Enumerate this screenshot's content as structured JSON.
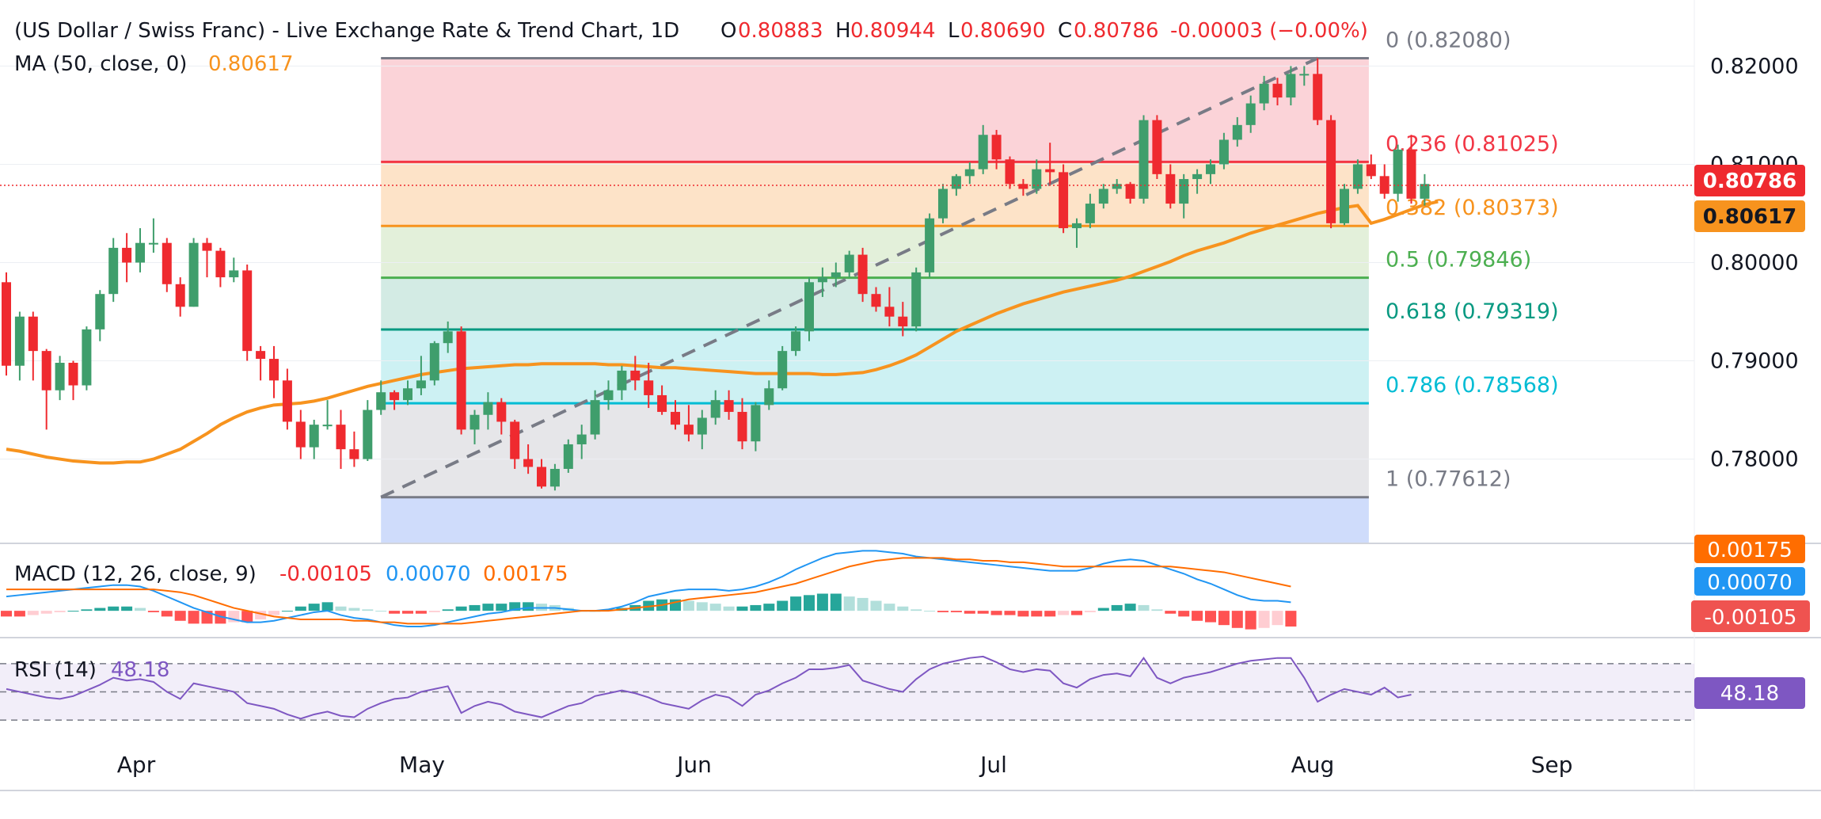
{
  "header": {
    "title": "(US Dollar / Swiss Franc) - Live Exchange Rate & Trend Chart, 1D",
    "ohlc": {
      "o_label": "O",
      "o": "0.80883",
      "h_label": "H",
      "h": "0.80944",
      "l_label": "L",
      "l": "0.80690",
      "c_label": "C",
      "c": "0.80786",
      "change": "-0.00003 (−0.00%)"
    },
    "ma_label": "MA (50, close, 0)",
    "ma_value": "0.80617"
  },
  "colors": {
    "up": "#26a69a",
    "upCandle": "#3f9e6c",
    "down": "#ef2a2f",
    "ma": "#f7931e",
    "macd": "#2196f3",
    "signal": "#ff6d00",
    "rsi": "#7e57c2",
    "fibGrey": "#787b86"
  },
  "chart_data": {
    "type": "candlestick",
    "price_axis": {
      "min": 0.7715,
      "max": 0.8235,
      "ticks": [
        "0.82000",
        "0.81000",
        "0.80000",
        "0.79000",
        "0.78000"
      ]
    },
    "time_axis": {
      "labels": [
        "Apr",
        "May",
        "Jun",
        "Jul",
        "Aug",
        "Sep"
      ]
    },
    "last_price": "0.80786",
    "ma_last": "0.80617",
    "fibonacci": [
      {
        "level": "0",
        "value": 0.8208,
        "label": "0 (0.82080)",
        "color": "#787b86",
        "fill": "#fbd3d8"
      },
      {
        "level": "0.236",
        "value": 0.81025,
        "label": "0.236 (0.81025)",
        "color": "#f23645",
        "fill": "#fde3c8"
      },
      {
        "level": "0.382",
        "value": 0.80373,
        "label": "0.382 (0.80373)",
        "color": "#f7931e",
        "fill": "#e3f0da"
      },
      {
        "level": "0.5",
        "value": 0.79846,
        "label": "0.5 (0.79846)",
        "color": "#4caf50",
        "fill": "#d3ebe4"
      },
      {
        "level": "0.618",
        "value": 0.79319,
        "label": "0.618 (0.79319)",
        "color": "#089981",
        "fill": "#cdf1f3"
      },
      {
        "level": "0.786",
        "value": 0.78568,
        "label": "0.786 (0.78568)",
        "color": "#00bcd4",
        "fill": "#e6e6e9"
      },
      {
        "level": "1",
        "value": 0.77612,
        "label": "1 (0.77612)",
        "color": "#787b86",
        "fill": "#cfdcfb"
      }
    ],
    "trend_line": {
      "from": {
        "bar": 28,
        "value": 0.77612
      },
      "to": {
        "bar": 98,
        "value": 0.8208
      }
    },
    "candles": [
      [
        0.798,
        0.799,
        0.7885,
        0.7895
      ],
      [
        0.7895,
        0.795,
        0.788,
        0.7945
      ],
      [
        0.7945,
        0.795,
        0.788,
        0.791
      ],
      [
        0.791,
        0.7912,
        0.783,
        0.787
      ],
      [
        0.787,
        0.7905,
        0.786,
        0.7898
      ],
      [
        0.7898,
        0.79,
        0.786,
        0.7875
      ],
      [
        0.7875,
        0.7935,
        0.787,
        0.7932
      ],
      [
        0.7932,
        0.7972,
        0.792,
        0.7968
      ],
      [
        0.7968,
        0.8025,
        0.796,
        0.8015
      ],
      [
        0.8015,
        0.803,
        0.798,
        0.8
      ],
      [
        0.8,
        0.8035,
        0.799,
        0.802
      ],
      [
        0.802,
        0.8045,
        0.801,
        0.802
      ],
      [
        0.802,
        0.8025,
        0.797,
        0.7978
      ],
      [
        0.7978,
        0.7985,
        0.7945,
        0.7955
      ],
      [
        0.7955,
        0.8025,
        0.7955,
        0.802
      ],
      [
        0.802,
        0.8025,
        0.7985,
        0.8012
      ],
      [
        0.8012,
        0.8015,
        0.7975,
        0.7985
      ],
      [
        0.7985,
        0.8005,
        0.798,
        0.7992
      ],
      [
        0.7992,
        0.7998,
        0.79,
        0.791
      ],
      [
        0.791,
        0.7915,
        0.788,
        0.7902
      ],
      [
        0.7902,
        0.7915,
        0.7862,
        0.788
      ],
      [
        0.788,
        0.7892,
        0.783,
        0.7838
      ],
      [
        0.7838,
        0.785,
        0.78,
        0.7812
      ],
      [
        0.7812,
        0.784,
        0.78,
        0.7835
      ],
      [
        0.7835,
        0.786,
        0.783,
        0.7835
      ],
      [
        0.7835,
        0.785,
        0.779,
        0.781
      ],
      [
        0.781,
        0.7828,
        0.7792,
        0.78
      ],
      [
        0.78,
        0.786,
        0.7798,
        0.785
      ],
      [
        0.785,
        0.788,
        0.7845,
        0.7868
      ],
      [
        0.7868,
        0.787,
        0.785,
        0.786
      ],
      [
        0.786,
        0.788,
        0.7855,
        0.7872
      ],
      [
        0.7872,
        0.7905,
        0.7865,
        0.788
      ],
      [
        0.788,
        0.792,
        0.7875,
        0.7918
      ],
      [
        0.7918,
        0.794,
        0.7908,
        0.793
      ],
      [
        0.793,
        0.7935,
        0.7825,
        0.783
      ],
      [
        0.783,
        0.785,
        0.7815,
        0.7845
      ],
      [
        0.7845,
        0.7868,
        0.783,
        0.7858
      ],
      [
        0.7858,
        0.7862,
        0.7825,
        0.7838
      ],
      [
        0.7838,
        0.784,
        0.779,
        0.78
      ],
      [
        0.78,
        0.7815,
        0.7785,
        0.7792
      ],
      [
        0.7792,
        0.78,
        0.777,
        0.7772
      ],
      [
        0.7772,
        0.7795,
        0.7768,
        0.779
      ],
      [
        0.779,
        0.782,
        0.7786,
        0.7815
      ],
      [
        0.7815,
        0.7835,
        0.78,
        0.7825
      ],
      [
        0.7825,
        0.787,
        0.782,
        0.786
      ],
      [
        0.786,
        0.788,
        0.785,
        0.787
      ],
      [
        0.787,
        0.7895,
        0.786,
        0.789
      ],
      [
        0.789,
        0.7905,
        0.787,
        0.788
      ],
      [
        0.788,
        0.7898,
        0.7852,
        0.7865
      ],
      [
        0.7865,
        0.7875,
        0.7845,
        0.7848
      ],
      [
        0.7848,
        0.786,
        0.783,
        0.7835
      ],
      [
        0.7835,
        0.7855,
        0.7818,
        0.7825
      ],
      [
        0.7825,
        0.785,
        0.781,
        0.7842
      ],
      [
        0.7842,
        0.787,
        0.7835,
        0.786
      ],
      [
        0.786,
        0.787,
        0.784,
        0.7848
      ],
      [
        0.7848,
        0.7862,
        0.781,
        0.7818
      ],
      [
        0.7818,
        0.7858,
        0.7808,
        0.7855
      ],
      [
        0.7855,
        0.788,
        0.785,
        0.7872
      ],
      [
        0.7872,
        0.7915,
        0.787,
        0.791
      ],
      [
        0.791,
        0.7935,
        0.7905,
        0.793
      ],
      [
        0.793,
        0.7985,
        0.792,
        0.798
      ],
      [
        0.798,
        0.7995,
        0.7965,
        0.7985
      ],
      [
        0.7985,
        0.8,
        0.7975,
        0.799
      ],
      [
        0.799,
        0.8012,
        0.7985,
        0.8008
      ],
      [
        0.8008,
        0.8015,
        0.796,
        0.7968
      ],
      [
        0.7968,
        0.7975,
        0.795,
        0.7955
      ],
      [
        0.7955,
        0.7975,
        0.7935,
        0.7945
      ],
      [
        0.7945,
        0.796,
        0.7925,
        0.7935
      ],
      [
        0.7935,
        0.7995,
        0.793,
        0.799
      ],
      [
        0.799,
        0.805,
        0.7985,
        0.8045
      ],
      [
        0.8045,
        0.808,
        0.804,
        0.8075
      ],
      [
        0.8075,
        0.809,
        0.8068,
        0.8088
      ],
      [
        0.8088,
        0.8102,
        0.808,
        0.8095
      ],
      [
        0.8095,
        0.814,
        0.809,
        0.813
      ],
      [
        0.813,
        0.8135,
        0.8095,
        0.8105
      ],
      [
        0.8105,
        0.8108,
        0.8075,
        0.808
      ],
      [
        0.808,
        0.8085,
        0.8068,
        0.8075
      ],
      [
        0.8075,
        0.8105,
        0.807,
        0.8095
      ],
      [
        0.8095,
        0.8122,
        0.808,
        0.8092
      ],
      [
        0.8092,
        0.81,
        0.803,
        0.8035
      ],
      [
        0.8035,
        0.8045,
        0.8015,
        0.804
      ],
      [
        0.804,
        0.807,
        0.8035,
        0.806
      ],
      [
        0.806,
        0.808,
        0.8055,
        0.8075
      ],
      [
        0.8075,
        0.8085,
        0.807,
        0.808
      ],
      [
        0.808,
        0.8082,
        0.806,
        0.8065
      ],
      [
        0.8065,
        0.815,
        0.806,
        0.8145
      ],
      [
        0.8145,
        0.815,
        0.8085,
        0.809
      ],
      [
        0.809,
        0.81,
        0.8055,
        0.806
      ],
      [
        0.806,
        0.809,
        0.8045,
        0.8085
      ],
      [
        0.8085,
        0.8095,
        0.807,
        0.809
      ],
      [
        0.809,
        0.8105,
        0.808,
        0.81
      ],
      [
        0.81,
        0.8132,
        0.8095,
        0.8125
      ],
      [
        0.8125,
        0.8148,
        0.8118,
        0.814
      ],
      [
        0.814,
        0.817,
        0.8132,
        0.8162
      ],
      [
        0.8162,
        0.819,
        0.8155,
        0.8182
      ],
      [
        0.8182,
        0.8188,
        0.816,
        0.8168
      ],
      [
        0.8168,
        0.82,
        0.816,
        0.8192
      ],
      [
        0.8192,
        0.82,
        0.818,
        0.8192
      ],
      [
        0.8192,
        0.8208,
        0.814,
        0.8145
      ],
      [
        0.8145,
        0.815,
        0.8035,
        0.804
      ],
      [
        0.804,
        0.808,
        0.8038,
        0.8075
      ],
      [
        0.8075,
        0.8105,
        0.807,
        0.81
      ],
      [
        0.81,
        0.811,
        0.8085,
        0.8088
      ],
      [
        0.8088,
        0.81,
        0.8065,
        0.807
      ],
      [
        0.807,
        0.812,
        0.8062,
        0.8115
      ],
      [
        0.8115,
        0.813,
        0.806,
        0.8065
      ],
      [
        0.8065,
        0.809,
        0.8058,
        0.808
      ]
    ],
    "ma_series": [
      0.781,
      0.7808,
      0.7805,
      0.7802,
      0.78,
      0.7798,
      0.7797,
      0.7796,
      0.7796,
      0.7797,
      0.7797,
      0.78,
      0.7805,
      0.781,
      0.7818,
      0.7826,
      0.7835,
      0.7842,
      0.7848,
      0.7852,
      0.7855,
      0.7856,
      0.7857,
      0.7859,
      0.7862,
      0.7866,
      0.787,
      0.7874,
      0.7877,
      0.788,
      0.7883,
      0.7886,
      0.7888,
      0.789,
      0.7892,
      0.7893,
      0.7894,
      0.7895,
      0.7896,
      0.7896,
      0.7897,
      0.7897,
      0.7897,
      0.7897,
      0.7897,
      0.7896,
      0.7896,
      0.7895,
      0.7894,
      0.7893,
      0.7893,
      0.7892,
      0.7891,
      0.789,
      0.7889,
      0.7888,
      0.7887,
      0.7887,
      0.7887,
      0.7887,
      0.7887,
      0.7886,
      0.7886,
      0.7887,
      0.7888,
      0.7891,
      0.7895,
      0.79,
      0.7906,
      0.7914,
      0.7922,
      0.793,
      0.7936,
      0.7942,
      0.7948,
      0.7953,
      0.7958,
      0.7962,
      0.7966,
      0.797,
      0.7973,
      0.7976,
      0.7979,
      0.7982,
      0.7986,
      0.7991,
      0.7996,
      0.8001,
      0.8007,
      0.8012,
      0.8016,
      0.802,
      0.8025,
      0.803,
      0.8034,
      0.8038,
      0.8042,
      0.8046,
      0.805,
      0.8053,
      0.8056,
      0.8058,
      0.804,
      0.8044,
      0.8049,
      0.8054,
      0.8059,
      0.8062
    ],
    "macd": {
      "label": "MACD (12, 26, close, 9)",
      "values": [
        "-0.00105",
        "0.00070",
        "0.00175"
      ],
      "macd_series": [
        0.001,
        0.0011,
        0.0012,
        0.0013,
        0.0014,
        0.0015,
        0.0016,
        0.0017,
        0.0018,
        0.0018,
        0.0017,
        0.0014,
        0.001,
        0.0006,
        0.0002,
        -0.0001,
        -0.0004,
        -0.0006,
        -0.0008,
        -0.0008,
        -0.0007,
        -0.0005,
        -0.0003,
        -0.0001,
        0.0,
        -0.0003,
        -0.0005,
        -0.0006,
        -0.0008,
        -0.001,
        -0.0011,
        -0.0011,
        -0.001,
        -0.0008,
        -0.0006,
        -0.0004,
        -0.0002,
        -0.0001,
        0.0001,
        0.0002,
        0.0002,
        0.0002,
        0.0001,
        0.0,
        0.0,
        0.0001,
        0.0003,
        0.0006,
        0.001,
        0.0012,
        0.0014,
        0.0015,
        0.0015,
        0.0015,
        0.0014,
        0.0015,
        0.0017,
        0.002,
        0.0024,
        0.0029,
        0.0033,
        0.0037,
        0.004,
        0.0041,
        0.0042,
        0.0042,
        0.0041,
        0.004,
        0.0038,
        0.0037,
        0.0036,
        0.0035,
        0.0034,
        0.0033,
        0.0032,
        0.0031,
        0.003,
        0.0029,
        0.0028,
        0.0028,
        0.0028,
        0.003,
        0.0033,
        0.0035,
        0.0036,
        0.0035,
        0.0032,
        0.0029,
        0.0026,
        0.0022,
        0.0019,
        0.0015,
        0.0011,
        0.0008,
        0.0007,
        0.0007,
        0.0006
      ],
      "signal_series": [
        0.0015,
        0.0015,
        0.0015,
        0.0015,
        0.0015,
        0.0015,
        0.0015,
        0.0015,
        0.0015,
        0.0015,
        0.0015,
        0.0015,
        0.0014,
        0.0013,
        0.0011,
        0.0008,
        0.0005,
        0.0002,
        0.0,
        -0.0002,
        -0.0004,
        -0.0005,
        -0.0006,
        -0.0006,
        -0.0006,
        -0.0006,
        -0.0007,
        -0.0007,
        -0.0008,
        -0.0008,
        -0.0009,
        -0.0009,
        -0.0009,
        -0.0009,
        -0.0009,
        -0.0008,
        -0.0007,
        -0.0006,
        -0.0005,
        -0.0004,
        -0.0003,
        -0.0002,
        -0.0001,
        0.0,
        0.0,
        0.0,
        0.0001,
        0.0002,
        0.0003,
        0.0004,
        0.0006,
        0.0008,
        0.0009,
        0.001,
        0.0011,
        0.0012,
        0.0013,
        0.0015,
        0.0017,
        0.0019,
        0.0022,
        0.0025,
        0.0028,
        0.0031,
        0.0033,
        0.0035,
        0.0036,
        0.0037,
        0.0037,
        0.0037,
        0.0037,
        0.0036,
        0.0036,
        0.0035,
        0.0035,
        0.0034,
        0.0034,
        0.0033,
        0.0032,
        0.0031,
        0.0031,
        0.0031,
        0.0031,
        0.0031,
        0.0031,
        0.0031,
        0.0031,
        0.0031,
        0.003,
        0.0029,
        0.0028,
        0.0027,
        0.0025,
        0.0023,
        0.0021,
        0.0019,
        0.0017
      ],
      "hist_series": [
        -0.0004,
        -0.0004,
        -0.0003,
        -0.0002,
        -0.0001,
        0.0,
        0.0001,
        0.0002,
        0.0003,
        0.0003,
        0.0002,
        -0.0001,
        -0.0004,
        -0.0007,
        -0.0009,
        -0.0009,
        -0.0009,
        -0.0008,
        -0.0008,
        -0.0006,
        -0.0003,
        0.0,
        0.0003,
        0.0005,
        0.0006,
        0.0003,
        0.0002,
        0.0001,
        0.0,
        -0.0002,
        -0.0002,
        -0.0002,
        -0.0001,
        0.0001,
        0.0003,
        0.0004,
        0.0005,
        0.0005,
        0.0006,
        0.0006,
        0.0005,
        0.0004,
        0.0002,
        0.0,
        0.0,
        0.0001,
        0.0002,
        0.0004,
        0.0007,
        0.0008,
        0.0008,
        0.0007,
        0.0006,
        0.0005,
        0.0003,
        0.0003,
        0.0004,
        0.0005,
        0.0007,
        0.001,
        0.0011,
        0.0012,
        0.0012,
        0.001,
        0.0009,
        0.0007,
        0.0005,
        0.0003,
        0.0001,
        0.0,
        -0.0001,
        -0.0001,
        -0.0002,
        -0.0002,
        -0.0003,
        -0.0003,
        -0.0004,
        -0.0004,
        -0.0004,
        -0.0003,
        -0.0003,
        -0.0001,
        0.0002,
        0.0004,
        0.0005,
        0.0004,
        0.0001,
        -0.0002,
        -0.0004,
        -0.0007,
        -0.0008,
        -0.001,
        -0.0012,
        -0.0013,
        -0.0012,
        -0.001,
        -0.0011
      ]
    },
    "rsi": {
      "label": "RSI (14)",
      "value": "48.18",
      "series": [
        52,
        50,
        48,
        46,
        45,
        47,
        51,
        55,
        60,
        58,
        59,
        57,
        50,
        45,
        56,
        54,
        52,
        50,
        42,
        40,
        38,
        34,
        31,
        34,
        36,
        33,
        32,
        38,
        42,
        45,
        46,
        50,
        52,
        54,
        35,
        40,
        43,
        41,
        36,
        34,
        32,
        36,
        40,
        42,
        47,
        49,
        51,
        49,
        46,
        42,
        40,
        38,
        44,
        48,
        46,
        40,
        48,
        51,
        56,
        60,
        66,
        66,
        67,
        69,
        58,
        55,
        52,
        50,
        59,
        66,
        70,
        72,
        74,
        75,
        71,
        66,
        64,
        66,
        65,
        56,
        53,
        59,
        62,
        63,
        61,
        74,
        60,
        56,
        60,
        62,
        64,
        67,
        70,
        72,
        73,
        74,
        74,
        60,
        43,
        48,
        52,
        50,
        48,
        53,
        46,
        48
      ]
    }
  }
}
